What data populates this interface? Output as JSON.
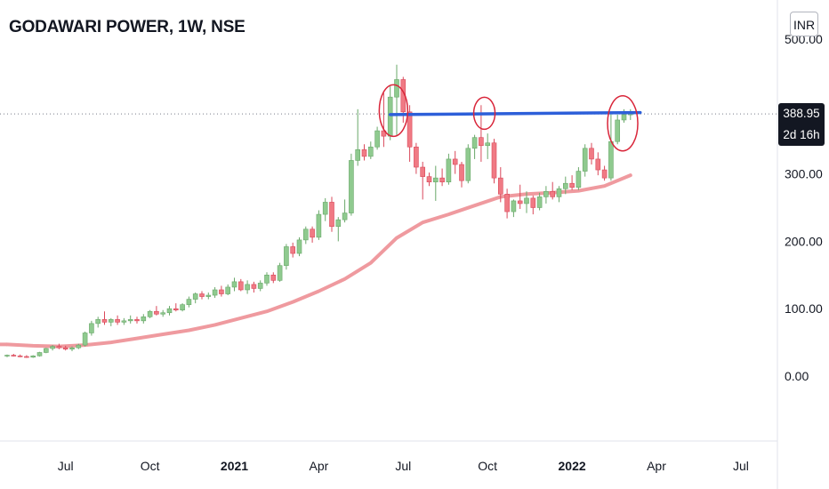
{
  "header": {
    "title": "GODAWARI POWER, 1W, NSE",
    "currency": "INR"
  },
  "price_axis": {
    "last_price": "388.95",
    "countdown": "2d 16h"
  },
  "colors": {
    "up": "#8fca8f",
    "down": "#f07a84",
    "up_border": "#6aa86a",
    "down_border": "#d9485a",
    "moving_average": "#ef9a9f",
    "trendline": "#2d5fd9",
    "circles": "#d9263a",
    "price_line": "#787b86"
  },
  "chart_data": {
    "type": "candlestick",
    "title": "GODAWARI POWER, 1W, NSE",
    "xlabel": "",
    "ylabel": "",
    "currency": "INR",
    "ylim": [
      -35,
      560
    ],
    "y_ticks": [
      0,
      100,
      200,
      300,
      500
    ],
    "y_tick_labels": [
      "0.00",
      "100.00",
      "200.00",
      "300.00",
      "500.00"
    ],
    "x_ticks": [
      {
        "label": "Jul",
        "week": 9,
        "bold": false
      },
      {
        "label": "Oct",
        "week": 22,
        "bold": false
      },
      {
        "label": "2021",
        "week": 35,
        "bold": true
      },
      {
        "label": "Apr",
        "week": 48,
        "bold": false
      },
      {
        "label": "Jul",
        "week": 61,
        "bold": false
      },
      {
        "label": "Oct",
        "week": 74,
        "bold": false
      },
      {
        "label": "2022",
        "week": 87,
        "bold": true
      },
      {
        "label": "Apr",
        "week": 100,
        "bold": false
      },
      {
        "label": "Jul",
        "week": 113,
        "bold": false
      }
    ],
    "grid": false,
    "last_price": 388.95,
    "candles": [
      [
        30,
        32,
        28,
        31
      ],
      [
        31,
        33,
        29,
        30
      ],
      [
        30,
        32,
        28,
        29
      ],
      [
        29,
        31,
        27,
        28
      ],
      [
        28,
        31,
        27,
        30
      ],
      [
        30,
        36,
        29,
        35
      ],
      [
        35,
        42,
        34,
        41
      ],
      [
        41,
        46,
        38,
        44
      ],
      [
        44,
        48,
        40,
        42
      ],
      [
        42,
        45,
        38,
        40
      ],
      [
        40,
        44,
        37,
        42
      ],
      [
        42,
        48,
        40,
        46
      ],
      [
        46,
        66,
        44,
        64
      ],
      [
        64,
        82,
        60,
        78
      ],
      [
        78,
        88,
        72,
        84
      ],
      [
        84,
        96,
        76,
        80
      ],
      [
        80,
        86,
        74,
        84
      ],
      [
        84,
        90,
        76,
        80
      ],
      [
        80,
        86,
        76,
        82
      ],
      [
        82,
        90,
        78,
        84
      ],
      [
        84,
        88,
        78,
        82
      ],
      [
        82,
        92,
        78,
        88
      ],
      [
        88,
        98,
        86,
        96
      ],
      [
        96,
        104,
        90,
        92
      ],
      [
        92,
        98,
        88,
        94
      ],
      [
        94,
        104,
        90,
        100
      ],
      [
        100,
        108,
        96,
        98
      ],
      [
        98,
        108,
        96,
        106
      ],
      [
        106,
        118,
        102,
        114
      ],
      [
        114,
        124,
        108,
        122
      ],
      [
        122,
        126,
        114,
        118
      ],
      [
        118,
        124,
        114,
        120
      ],
      [
        120,
        132,
        116,
        128
      ],
      [
        128,
        134,
        118,
        122
      ],
      [
        122,
        136,
        120,
        132
      ],
      [
        132,
        146,
        126,
        140
      ],
      [
        140,
        144,
        126,
        128
      ],
      [
        128,
        142,
        122,
        136
      ],
      [
        136,
        140,
        124,
        130
      ],
      [
        130,
        142,
        126,
        138
      ],
      [
        138,
        154,
        134,
        150
      ],
      [
        150,
        154,
        138,
        142
      ],
      [
        142,
        168,
        140,
        164
      ],
      [
        164,
        196,
        158,
        192
      ],
      [
        192,
        198,
        176,
        182
      ],
      [
        182,
        206,
        178,
        202
      ],
      [
        202,
        222,
        196,
        218
      ],
      [
        218,
        222,
        198,
        206
      ],
      [
        206,
        246,
        202,
        240
      ],
      [
        240,
        264,
        230,
        258
      ],
      [
        258,
        266,
        214,
        222
      ],
      [
        222,
        236,
        200,
        232
      ],
      [
        232,
        262,
        228,
        242
      ],
      [
        242,
        330,
        238,
        320
      ],
      [
        320,
        396,
        312,
        336
      ],
      [
        336,
        344,
        320,
        326
      ],
      [
        326,
        348,
        322,
        340
      ],
      [
        340,
        370,
        336,
        364
      ],
      [
        364,
        420,
        340,
        356
      ],
      [
        356,
        430,
        350,
        414
      ],
      [
        414,
        462,
        356,
        440
      ],
      [
        440,
        444,
        376,
        392
      ],
      [
        392,
        402,
        318,
        340
      ],
      [
        340,
        346,
        300,
        310
      ],
      [
        310,
        318,
        262,
        296
      ],
      [
        296,
        302,
        282,
        288
      ],
      [
        288,
        312,
        260,
        294
      ],
      [
        294,
        308,
        282,
        288
      ],
      [
        288,
        330,
        284,
        322
      ],
      [
        322,
        334,
        300,
        314
      ],
      [
        314,
        318,
        280,
        290
      ],
      [
        290,
        344,
        286,
        338
      ],
      [
        338,
        358,
        322,
        354
      ],
      [
        354,
        402,
        318,
        342
      ],
      [
        342,
        360,
        322,
        346
      ],
      [
        346,
        352,
        286,
        294
      ],
      [
        294,
        310,
        258,
        270
      ],
      [
        270,
        278,
        234,
        244
      ],
      [
        244,
        262,
        236,
        260
      ],
      [
        260,
        284,
        248,
        256
      ],
      [
        256,
        274,
        242,
        264
      ],
      [
        264,
        268,
        240,
        250
      ],
      [
        250,
        272,
        246,
        266
      ],
      [
        266,
        282,
        256,
        274
      ],
      [
        274,
        288,
        262,
        266
      ],
      [
        266,
        282,
        258,
        278
      ],
      [
        278,
        296,
        270,
        286
      ],
      [
        286,
        298,
        276,
        280
      ],
      [
        280,
        310,
        276,
        304
      ],
      [
        304,
        344,
        296,
        338
      ],
      [
        338,
        346,
        314,
        322
      ],
      [
        322,
        332,
        298,
        306
      ],
      [
        306,
        312,
        290,
        294
      ],
      [
        294,
        392,
        290,
        348
      ],
      [
        348,
        388,
        344,
        380
      ],
      [
        380,
        396,
        376,
        388
      ],
      [
        388,
        396,
        380,
        389
      ]
    ],
    "moving_average": [
      [
        0,
        47
      ],
      [
        4,
        45
      ],
      [
        8,
        44
      ],
      [
        12,
        46
      ],
      [
        16,
        50
      ],
      [
        20,
        56
      ],
      [
        24,
        62
      ],
      [
        28,
        68
      ],
      [
        32,
        76
      ],
      [
        36,
        86
      ],
      [
        40,
        96
      ],
      [
        44,
        110
      ],
      [
        48,
        126
      ],
      [
        52,
        144
      ],
      [
        56,
        168
      ],
      [
        60,
        205
      ],
      [
        64,
        228
      ],
      [
        68,
        240
      ],
      [
        72,
        253
      ],
      [
        76,
        266
      ],
      [
        80,
        270
      ],
      [
        84,
        272
      ],
      [
        88,
        275
      ],
      [
        92,
        282
      ],
      [
        96,
        298
      ]
    ],
    "trendline": [
      [
        59,
        388
      ],
      [
        97.5,
        391
      ]
    ],
    "highlight_circles": [
      [
        59.5,
        394
      ],
      [
        73.5,
        390
      ],
      [
        94.8,
        375
      ]
    ]
  }
}
